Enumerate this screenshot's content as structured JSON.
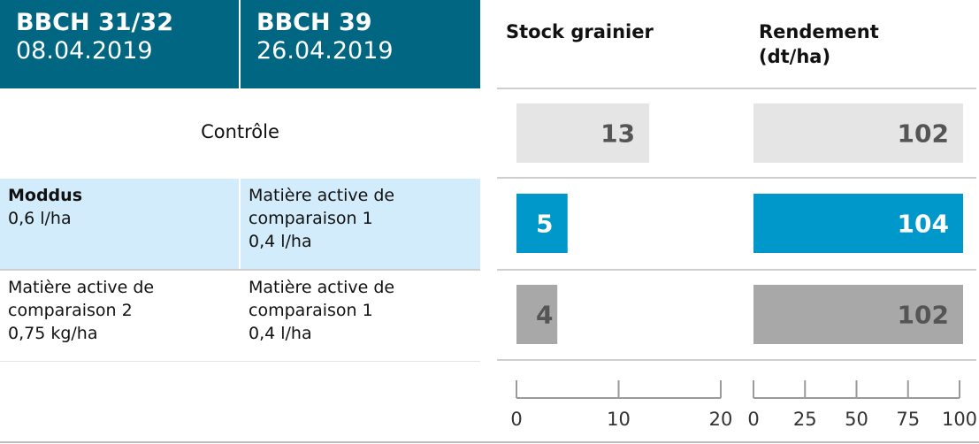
{
  "headers": [
    {
      "stage": "BBCH 31/32",
      "date": "08.04.2019"
    },
    {
      "stage": "BBCH 39",
      "date": "26.04.2019"
    }
  ],
  "column_titles": {
    "stock": "Stock grainier",
    "yield_line1": "Rendement",
    "yield_line2": "(dt/ha)"
  },
  "rows": {
    "control": {
      "label": "Contrôle"
    },
    "row2": {
      "first": {
        "name": "Moddus",
        "rate": "0,6 l/ha"
      },
      "second": {
        "line1": "Matière active de",
        "line2": "comparaison 1",
        "rate": "0,4 l/ha"
      }
    },
    "row3": {
      "first": {
        "line1": "Matière active de",
        "line2": "comparaison 2",
        "rate": "0,75 kg/ha"
      },
      "second": {
        "line1": "Matière active de",
        "line2": "comparaison 1",
        "rate": "0,4 l/ha"
      }
    }
  },
  "colors": {
    "header_bg": "#006682",
    "highlight_row": "#d3ecfb",
    "control_bar": "#e5e5e5",
    "moddus_bar": "#0098cb",
    "comparison_bar": "#a8a8a8"
  },
  "chart_data": [
    {
      "type": "bar",
      "orientation": "horizontal",
      "title": "Stock grainier",
      "categories": [
        "Contrôle",
        "Moddus 0,6 l/ha",
        "Matière active de comparaison 2 / 1"
      ],
      "values": [
        13,
        5,
        4
      ],
      "xlim": [
        0,
        20
      ],
      "ticks": [
        0,
        10,
        20
      ],
      "data_labels": [
        "13",
        "5",
        "4"
      ]
    },
    {
      "type": "bar",
      "orientation": "horizontal",
      "title": "Rendement (dt/ha)",
      "categories": [
        "Contrôle",
        "Moddus 0,6 l/ha",
        "Matière active de comparaison 2 / 1"
      ],
      "values": [
        102,
        104,
        102
      ],
      "xlim": [
        0,
        100
      ],
      "ticks": [
        0,
        25,
        50,
        75,
        100
      ],
      "data_labels": [
        "102",
        "104",
        "102"
      ]
    }
  ]
}
